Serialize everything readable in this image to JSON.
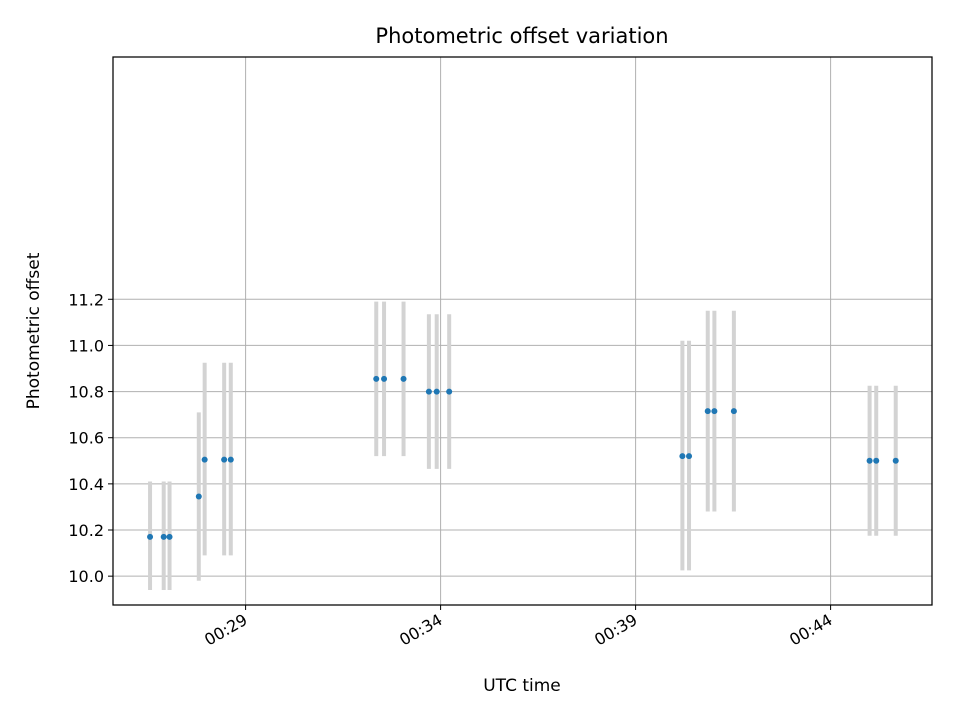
{
  "chart_data": {
    "type": "scatter",
    "title": "Photometric offset variation",
    "xlabel": "UTC time",
    "ylabel": "Photometric offset",
    "x_unit": "minutes",
    "xlim": [
      25.6,
      46.6
    ],
    "ylim": [
      9.875,
      12.25
    ],
    "x_ticks": [
      {
        "value": 29,
        "label": "00:29"
      },
      {
        "value": 34,
        "label": "00:34"
      },
      {
        "value": 39,
        "label": "00:39"
      },
      {
        "value": 44,
        "label": "00:44"
      }
    ],
    "y_ticks": [
      {
        "value": 10.0,
        "label": "10.0"
      },
      {
        "value": 10.2,
        "label": "10.2"
      },
      {
        "value": 10.4,
        "label": "10.4"
      },
      {
        "value": 10.6,
        "label": "10.6"
      },
      {
        "value": 10.8,
        "label": "10.8"
      },
      {
        "value": 11.0,
        "label": "11.0"
      },
      {
        "value": 11.2,
        "label": "11.2"
      }
    ],
    "grid": true,
    "marker_color": "#1f77b4",
    "errorbar_color": "#d3d3d3",
    "points": [
      {
        "x": 26.55,
        "y": 10.17,
        "lo": 9.94,
        "hi": 10.41
      },
      {
        "x": 26.9,
        "y": 10.17,
        "lo": 9.94,
        "hi": 10.41
      },
      {
        "x": 27.05,
        "y": 10.17,
        "lo": 9.94,
        "hi": 10.41
      },
      {
        "x": 27.8,
        "y": 10.345,
        "lo": 9.98,
        "hi": 10.71
      },
      {
        "x": 27.95,
        "y": 10.505,
        "lo": 10.09,
        "hi": 10.925
      },
      {
        "x": 28.45,
        "y": 10.505,
        "lo": 10.09,
        "hi": 10.925
      },
      {
        "x": 28.62,
        "y": 10.505,
        "lo": 10.09,
        "hi": 10.925
      },
      {
        "x": 32.35,
        "y": 10.855,
        "lo": 10.52,
        "hi": 11.19
      },
      {
        "x": 32.55,
        "y": 10.855,
        "lo": 10.52,
        "hi": 11.19
      },
      {
        "x": 33.05,
        "y": 10.855,
        "lo": 10.52,
        "hi": 11.19
      },
      {
        "x": 33.7,
        "y": 10.8,
        "lo": 10.465,
        "hi": 11.135
      },
      {
        "x": 33.9,
        "y": 10.8,
        "lo": 10.465,
        "hi": 11.135
      },
      {
        "x": 34.22,
        "y": 10.8,
        "lo": 10.465,
        "hi": 11.135
      },
      {
        "x": 40.2,
        "y": 10.52,
        "lo": 10.025,
        "hi": 11.02
      },
      {
        "x": 40.37,
        "y": 10.52,
        "lo": 10.025,
        "hi": 11.02
      },
      {
        "x": 40.85,
        "y": 10.715,
        "lo": 10.28,
        "hi": 11.15
      },
      {
        "x": 41.02,
        "y": 10.715,
        "lo": 10.28,
        "hi": 11.15
      },
      {
        "x": 41.52,
        "y": 10.715,
        "lo": 10.28,
        "hi": 11.15
      },
      {
        "x": 45.0,
        "y": 10.5,
        "lo": 10.175,
        "hi": 10.825
      },
      {
        "x": 45.17,
        "y": 10.5,
        "lo": 10.175,
        "hi": 10.825
      },
      {
        "x": 45.67,
        "y": 10.5,
        "lo": 10.175,
        "hi": 10.825
      }
    ]
  }
}
